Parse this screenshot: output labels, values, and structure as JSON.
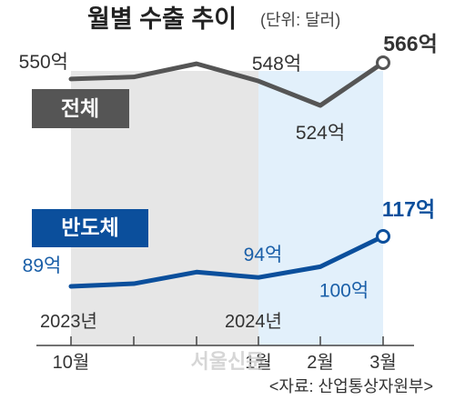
{
  "title": "월별 수출 추이",
  "unit": "(단위: 달러)",
  "source": "<자료: 산업통상자원부>",
  "watermark": "서울신문",
  "colors": {
    "total_line": "#555555",
    "total_label_bg": "#555555",
    "semi_line": "#0b4f9c",
    "semi_label_bg": "#0b4f9c",
    "semi_value_text": "#1a5fa8",
    "area_2023": "#e6e6e6",
    "area_2024": "#e2f0fb"
  },
  "chart_data": {
    "type": "line",
    "categories": [
      "10월",
      "",
      "",
      "1월",
      "2월",
      "3월"
    ],
    "series": [
      {
        "name": "전체",
        "values": [
          550,
          552,
          565,
          548,
          524,
          566
        ],
        "labels": [
          "550억",
          "",
          "",
          "548억",
          "524억",
          "566억"
        ]
      },
      {
        "name": "반도체",
        "values": [
          89,
          90.5,
          97,
          94,
          100,
          117
        ],
        "labels": [
          "89억",
          "",
          "",
          "94억",
          "100억",
          "117억"
        ]
      }
    ],
    "year_labels": [
      "2023년",
      "2024년"
    ],
    "grid": false,
    "legend": "inline"
  }
}
